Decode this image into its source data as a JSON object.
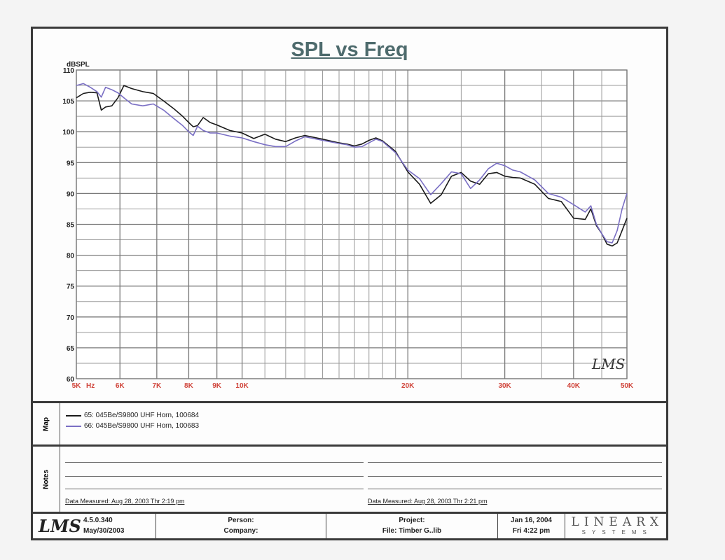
{
  "chart_data": {
    "type": "line",
    "title": "SPL vs Freq",
    "ylabel": "dBSPL",
    "x_unit": "Hz",
    "ylim": [
      60,
      110
    ],
    "xlim": [
      5000,
      50000
    ],
    "x_scale": "log",
    "grid": true,
    "yticks": [
      110,
      105,
      100,
      95,
      90,
      85,
      80,
      75,
      70,
      65,
      60
    ],
    "xticks": [
      {
        "value": 5000,
        "label": "5K"
      },
      {
        "value": 6000,
        "label": "6K"
      },
      {
        "value": 7000,
        "label": "7K"
      },
      {
        "value": 8000,
        "label": "8K"
      },
      {
        "value": 9000,
        "label": "9K"
      },
      {
        "value": 10000,
        "label": "10K"
      },
      {
        "value": 20000,
        "label": "20K"
      },
      {
        "value": 30000,
        "label": "30K"
      },
      {
        "value": 40000,
        "label": "40K"
      },
      {
        "value": 50000,
        "label": "50K"
      }
    ],
    "series": [
      {
        "name": "65: 045Be/S9800 UHF Horn,  100684",
        "color": "#1a1a1a",
        "x": [
          5000,
          5150,
          5300,
          5450,
          5550,
          5650,
          5800,
          5950,
          6100,
          6300,
          6600,
          6900,
          7200,
          7500,
          7800,
          8000,
          8150,
          8300,
          8500,
          8750,
          9000,
          9500,
          10000,
          10500,
          11000,
          11500,
          12000,
          12500,
          13000,
          14000,
          15000,
          15500,
          16000,
          16500,
          17000,
          17500,
          18000,
          19000,
          20000,
          21000,
          22000,
          23000,
          24000,
          25000,
          26000,
          27000,
          28000,
          29000,
          30000,
          31000,
          32000,
          34000,
          36000,
          38000,
          40000,
          42000,
          43000,
          44000,
          45000,
          46000,
          47000,
          48000,
          49000,
          50000
        ],
        "y": [
          105.5,
          106.2,
          106.4,
          106.3,
          103.5,
          104.0,
          104.2,
          105.5,
          107.5,
          107.0,
          106.5,
          106.2,
          105.0,
          103.8,
          102.5,
          101.5,
          100.8,
          101.0,
          102.3,
          101.5,
          101.1,
          100.2,
          99.8,
          98.9,
          99.6,
          98.8,
          98.4,
          99.0,
          99.4,
          98.8,
          98.2,
          98.0,
          97.7,
          98.0,
          98.6,
          99.0,
          98.5,
          96.8,
          93.5,
          91.5,
          88.4,
          89.8,
          92.8,
          93.4,
          92.0,
          91.5,
          93.2,
          93.4,
          92.8,
          92.6,
          92.5,
          91.5,
          89.2,
          88.7,
          86.0,
          85.8,
          87.5,
          84.8,
          83.5,
          81.8,
          81.5,
          82.0,
          84.0,
          86.0
        ]
      },
      {
        "name": "66: 045Be/S9800 UHF Horn,  100683",
        "color": "#7a6fc4",
        "x": [
          5000,
          5150,
          5300,
          5450,
          5550,
          5650,
          5800,
          5950,
          6100,
          6300,
          6600,
          6900,
          7200,
          7500,
          7800,
          8000,
          8150,
          8300,
          8500,
          8750,
          9000,
          9500,
          10000,
          10500,
          11000,
          11500,
          12000,
          12500,
          13000,
          14000,
          15000,
          15500,
          16000,
          16500,
          17000,
          17500,
          18000,
          19000,
          20000,
          21000,
          22000,
          23000,
          24000,
          25000,
          26000,
          27000,
          28000,
          29000,
          30000,
          31000,
          32000,
          34000,
          36000,
          38000,
          40000,
          42000,
          43000,
          44000,
          45000,
          46000,
          47000,
          48000,
          49000,
          50000
        ],
        "y": [
          107.5,
          107.8,
          107.2,
          106.5,
          105.6,
          107.2,
          106.8,
          106.3,
          105.5,
          104.5,
          104.2,
          104.5,
          103.5,
          102.2,
          101.0,
          100.0,
          99.4,
          100.9,
          100.2,
          99.8,
          99.8,
          99.3,
          99.0,
          98.4,
          97.9,
          97.6,
          97.6,
          98.5,
          99.2,
          98.6,
          98.1,
          97.9,
          97.5,
          97.6,
          98.2,
          98.8,
          98.4,
          96.6,
          93.8,
          92.4,
          89.8,
          91.6,
          93.5,
          93.2,
          90.8,
          92.2,
          94.0,
          94.9,
          94.5,
          93.8,
          93.5,
          92.2,
          90.0,
          89.4,
          88.2,
          87.0,
          88.0,
          85.0,
          83.5,
          82.2,
          82.0,
          84.0,
          87.5,
          90.0
        ]
      }
    ],
    "annotation": "LMS"
  },
  "map": {
    "label": "Map",
    "entries": [
      {
        "text": "65: 045Be/S9800 UHF Horn,  100684",
        "color": "#1a1a1a"
      },
      {
        "text": "66: 045Be/S9800 UHF Horn,  100683",
        "color": "#7a6fc4"
      }
    ]
  },
  "notes": {
    "label": "Notes",
    "left_measured": "Data Measured: Aug 28, 2003  Thr  2:19 pm",
    "right_measured": "Data Measured: Aug 28, 2003  Thr  2:21 pm"
  },
  "footer": {
    "logo": "LMS",
    "version": "4.5.0.340",
    "version_date": "May/30/2003",
    "person_label": "Person:",
    "company_label": "Company:",
    "project_label": "Project:",
    "file_label": "File: Timber G..lib",
    "date": "Jan 16, 2004",
    "day_time": "Fri  4:22 pm",
    "brand_top": "LINEARX",
    "brand_bottom": "SYSTEMS"
  }
}
